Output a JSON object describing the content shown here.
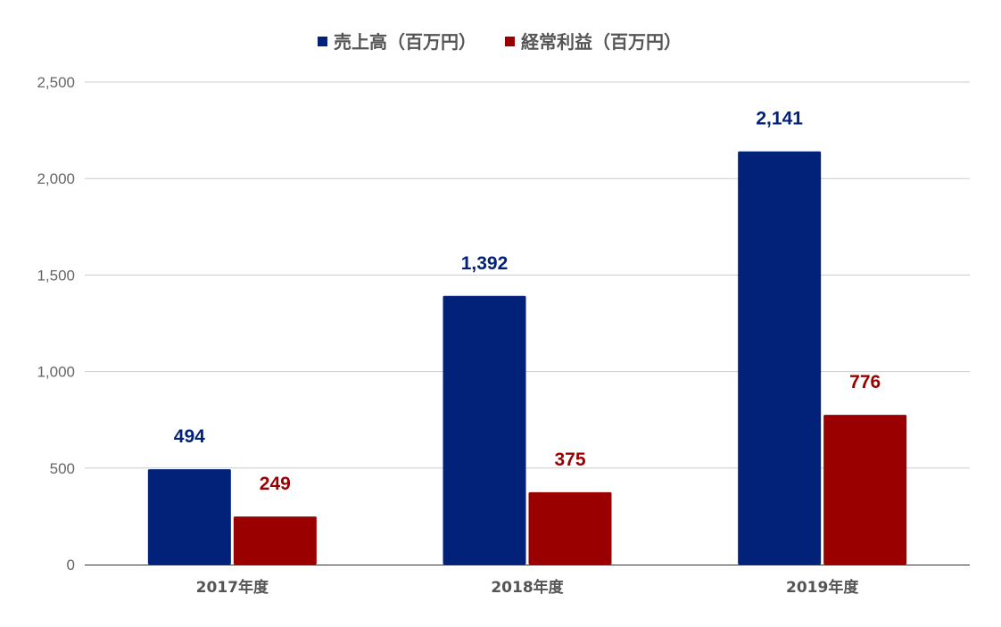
{
  "chart_data": {
    "type": "bar",
    "title": "",
    "xlabel": "",
    "ylabel": "",
    "categories": [
      "2017年度",
      "2018年度",
      "2019年度"
    ],
    "series": [
      {
        "name": "売上高（百万円）",
        "values": [
          494,
          1392,
          2141
        ],
        "color": "#022279"
      },
      {
        "name": "経常利益（百万円）",
        "values": [
          249,
          375,
          776
        ],
        "color": "#9a0000"
      }
    ],
    "ylim": [
      0,
      2500
    ],
    "yticks": [
      0,
      500,
      1000,
      1500,
      2000,
      2500
    ],
    "ytick_labels": [
      "0",
      "500",
      "1,000",
      "1,500",
      "2,000",
      "2,500"
    ],
    "data_labels": [
      [
        "494",
        "1,392",
        "2,141"
      ],
      [
        "249",
        "375",
        "776"
      ]
    ],
    "grid": true,
    "legend": "top-center"
  }
}
